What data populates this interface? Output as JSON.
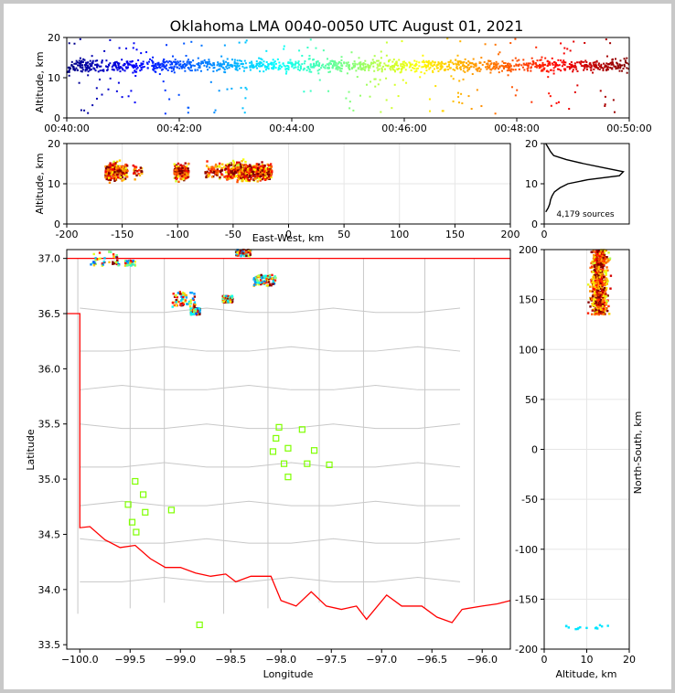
{
  "chart_data": [
    {
      "id": "time-height",
      "type": "scatter",
      "title": "Oklahoma LMA 0040-0050 UTC August 01, 2021",
      "xlabel": "",
      "ylabel": "Altitude, km",
      "x_ticks": [
        "00:40:00",
        "00:42:00",
        "00:44:00",
        "00:46:00",
        "00:48:00",
        "00:50:00"
      ],
      "xlim_minutes": [
        0,
        10
      ],
      "ylim": [
        0,
        20
      ],
      "y_ticks": [
        0,
        10,
        20
      ],
      "colormap": "jet (time)",
      "altitude_core_km": [
        10,
        16
      ]
    },
    {
      "id": "east-west-altitude",
      "type": "scatter",
      "xlabel": "East-West, km",
      "ylabel": "Altitude, km",
      "xlim": [
        -200,
        200
      ],
      "ylim": [
        0,
        20
      ],
      "x_ticks": [
        -200,
        -150,
        -100,
        -50,
        0,
        50,
        100,
        150,
        200
      ],
      "y_ticks": [
        0,
        10,
        20
      ],
      "grid": true,
      "clusters_x_km": [
        [
          -165,
          -145
        ],
        [
          -140,
          -132
        ],
        [
          -103,
          -90
        ],
        [
          -75,
          -55
        ],
        [
          -55,
          -15
        ]
      ]
    },
    {
      "id": "altitude-histogram",
      "type": "line",
      "annotation": "4,179 sources",
      "xlim": [
        0,
        1
      ],
      "ylim": [
        0,
        20
      ],
      "y_ticks": [
        0,
        10,
        20
      ],
      "x_ticks": [
        0
      ],
      "altitude_km": [
        3,
        4,
        5,
        6,
        7,
        8,
        9,
        10,
        11,
        12,
        13,
        14,
        15,
        16,
        17,
        18,
        19,
        20
      ],
      "relative_count": [
        0.02,
        0.05,
        0.07,
        0.08,
        0.1,
        0.13,
        0.2,
        0.3,
        0.55,
        0.95,
        1.0,
        0.75,
        0.5,
        0.28,
        0.12,
        0.08,
        0.05,
        0.02
      ]
    },
    {
      "id": "plan-view",
      "type": "scatter",
      "xlabel": "Longitude",
      "ylabel": "Latitude",
      "xlim": [
        -100.13,
        -95.72
      ],
      "ylim": [
        33.46,
        37.08
      ],
      "x_ticks": [
        -100.0,
        -99.5,
        -99.0,
        -98.5,
        -98.0,
        -97.5,
        -97.0,
        -96.5,
        -96.0
      ],
      "y_ticks": [
        33.5,
        34.0,
        34.5,
        35.0,
        35.5,
        36.0,
        36.5,
        37.0
      ],
      "x_tick_labels": [
        "−100.0",
        "−99.5",
        "−99.0",
        "−98.5",
        "−98.0",
        "−97.5",
        "−97.0",
        "−96.5",
        "−96.0"
      ],
      "y_tick_labels": [
        "33.5",
        "34.0",
        "34.5",
        "35.0",
        "35.5",
        "36.0",
        "36.5",
        "37.0"
      ],
      "stations": [
        {
          "lon": -98.02,
          "lat": 35.47
        },
        {
          "lon": -97.79,
          "lat": 35.45
        },
        {
          "lon": -98.05,
          "lat": 35.37
        },
        {
          "lon": -97.93,
          "lat": 35.28
        },
        {
          "lon": -98.08,
          "lat": 35.25
        },
        {
          "lon": -97.67,
          "lat": 35.26
        },
        {
          "lon": -97.97,
          "lat": 35.14
        },
        {
          "lon": -97.74,
          "lat": 35.14
        },
        {
          "lon": -97.52,
          "lat": 35.13
        },
        {
          "lon": -97.93,
          "lat": 35.02
        },
        {
          "lon": -99.45,
          "lat": 34.98
        },
        {
          "lon": -99.37,
          "lat": 34.86
        },
        {
          "lon": -99.52,
          "lat": 34.77
        },
        {
          "lon": -99.35,
          "lat": 34.7
        },
        {
          "lon": -99.09,
          "lat": 34.72
        },
        {
          "lon": -99.48,
          "lat": 34.61
        },
        {
          "lon": -99.44,
          "lat": 34.52
        },
        {
          "lon": -98.81,
          "lat": 33.68
        }
      ],
      "storm_regions": [
        {
          "lon": [
            -99.9,
            -99.6
          ],
          "lat": [
            36.93,
            37.06
          ]
        },
        {
          "lon": [
            -99.55,
            -99.45
          ],
          "lat": [
            36.93,
            36.98
          ]
        },
        {
          "lon": [
            -98.45,
            -98.3
          ],
          "lat": [
            37.02,
            37.08
          ]
        },
        {
          "lon": [
            -99.08,
            -98.85
          ],
          "lat": [
            36.56,
            36.7
          ]
        },
        {
          "lon": [
            -98.9,
            -98.8
          ],
          "lat": [
            36.49,
            36.55
          ]
        },
        {
          "lon": [
            -98.58,
            -98.48
          ],
          "lat": [
            36.6,
            36.66
          ]
        },
        {
          "lon": [
            -98.27,
            -98.05
          ],
          "lat": [
            36.75,
            36.85
          ]
        }
      ]
    },
    {
      "id": "altitude-north-south",
      "type": "scatter",
      "xlabel": "Altitude, km",
      "ylabel": "North-South, km",
      "xlim": [
        0,
        20
      ],
      "ylim": [
        -200,
        200
      ],
      "x_ticks": [
        0,
        10,
        20
      ],
      "y_ticks": [
        -200,
        -150,
        -100,
        -50,
        0,
        50,
        100,
        150,
        200
      ],
      "clusters_y_km": [
        [
          135,
          200
        ],
        [
          -180,
          -176
        ]
      ]
    }
  ],
  "colors": {
    "boundary": "#ff0000",
    "counties": "#c8c8c8",
    "station": "#7fff00",
    "frame_bg": "#c8c8c8"
  }
}
